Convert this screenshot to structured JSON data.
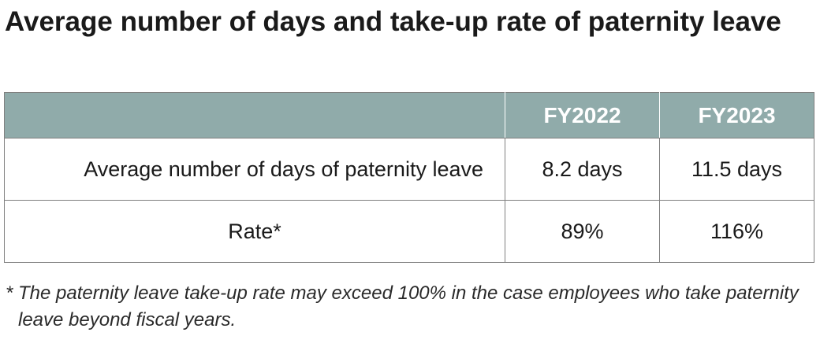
{
  "title": "Average number of days and take-up rate of paternity leave",
  "table": {
    "header": [
      "",
      "FY2022",
      "FY2023"
    ],
    "rows": [
      {
        "label": "Average number of days of paternity leave",
        "fy2022": "8.2 days",
        "fy2023": "11.5 days"
      },
      {
        "label": "Rate*",
        "fy2022": "89%",
        "fy2023": "116%"
      }
    ],
    "header_color": "#90abaa"
  },
  "footnote": "* The paternity leave take-up rate may exceed 100% in the case employees who take paternity leave beyond fiscal years."
}
